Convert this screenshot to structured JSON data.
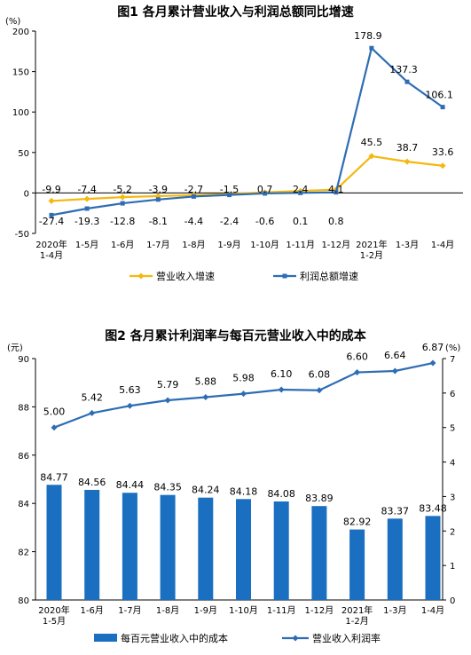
{
  "chart1": {
    "title": "图1  各月累计营业收入与利润总额同比增速",
    "unit": "(%)",
    "chart_data": {
      "type": "line",
      "categories": [
        "2020年\n1-4月",
        "1-5月",
        "1-6月",
        "1-7月",
        "1-8月",
        "1-9月",
        "1-10月",
        "1-11月",
        "1-12月",
        "2021年\n1-2月",
        "1-3月",
        "1-4月"
      ],
      "series": [
        {
          "name": "营业收入增速",
          "color": "#F5B80F",
          "values": [
            -9.9,
            -7.4,
            -5.2,
            -3.9,
            -2.7,
            -1.5,
            0.7,
            2.4,
            4.1,
            45.5,
            38.7,
            33.6
          ]
        },
        {
          "name": "利润总额增速",
          "color": "#2E6DB4",
          "values": [
            -27.4,
            -19.3,
            -12.8,
            -8.1,
            -4.4,
            -2.4,
            -0.6,
            0.1,
            0.8,
            178.9,
            137.3,
            106.1
          ]
        }
      ],
      "ylim": [
        -50,
        200
      ],
      "yticks": [
        -50,
        0,
        50,
        100,
        150,
        200
      ],
      "grid": false,
      "legend": "bottom"
    }
  },
  "chart2": {
    "title": "图2  各月累计利润率与每百元营业收入中的成本",
    "unit_left": "(元)",
    "unit_right": "(%)",
    "chart_data": {
      "type": "bar",
      "categories": [
        "2020年\n1-5月",
        "1-6月",
        "1-7月",
        "1-8月",
        "1-9月",
        "1-10月",
        "1-11月",
        "1-12月",
        "2021年\n1-2月",
        "1-3月",
        "1-4月"
      ],
      "series": [
        {
          "name": "每百元营业收入中的成本",
          "type": "bar",
          "axis": "left",
          "color": "#1A6FC0",
          "values": [
            84.77,
            84.56,
            84.44,
            84.35,
            84.24,
            84.18,
            84.08,
            83.89,
            82.92,
            83.37,
            83.48
          ]
        },
        {
          "name": "营业收入利润率",
          "type": "line",
          "axis": "right",
          "color": "#2E6DB4",
          "values": [
            5.0,
            5.42,
            5.63,
            5.79,
            5.88,
            5.98,
            6.1,
            6.08,
            6.6,
            6.64,
            6.87
          ]
        }
      ],
      "ylim_left": [
        80,
        90
      ],
      "yticks_left": [
        80,
        82,
        84,
        86,
        88,
        90
      ],
      "ylim_right": [
        0,
        7
      ],
      "yticks_right": [
        0,
        1,
        2,
        3,
        4,
        5,
        6,
        7
      ],
      "grid": false,
      "legend": "bottom"
    }
  }
}
